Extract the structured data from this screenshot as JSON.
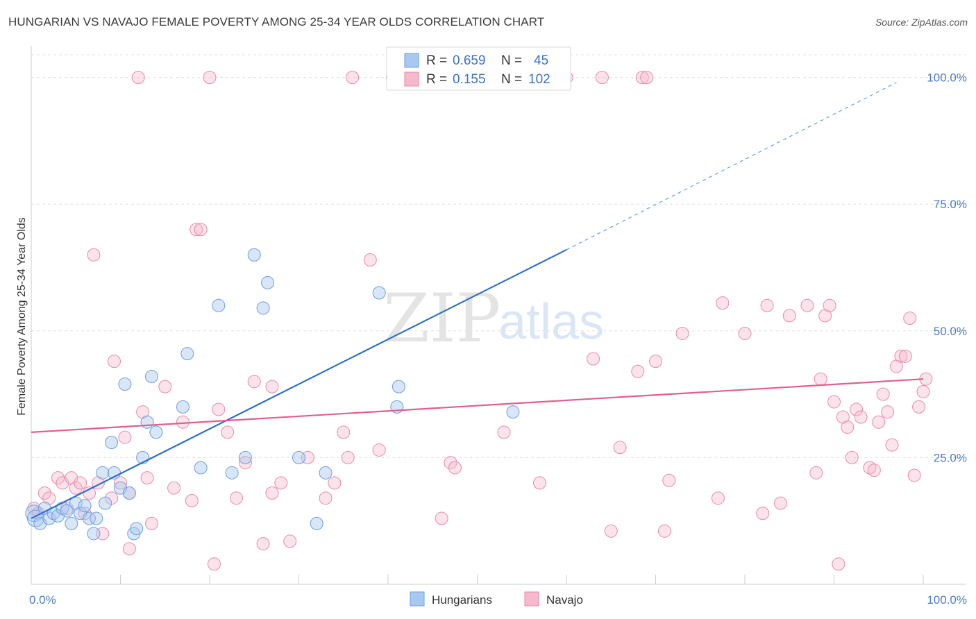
{
  "title": "HUNGARIAN VS NAVAJO FEMALE POVERTY AMONG 25-34 YEAR OLDS CORRELATION CHART",
  "source": "Source: ZipAtlas.com",
  "watermark": {
    "zip": "ZIP",
    "atlas": "atlas"
  },
  "legend": {
    "rows": [
      {
        "r_label": "R =",
        "r_value": "0.659",
        "n_label": "N =",
        "n_value": "45",
        "color": "#a8c8f0",
        "stroke": "#6a9fe0"
      },
      {
        "r_label": "R =",
        "r_value": "0.155",
        "n_label": "N =",
        "n_value": "102",
        "color": "#f5b8cc",
        "stroke": "#e88aa8"
      }
    ]
  },
  "bottom_legend": [
    {
      "label": "Hungarians",
      "color": "#a8c8f0",
      "stroke": "#6a9fe0"
    },
    {
      "label": "Navajo",
      "color": "#f5b8cc",
      "stroke": "#e88aa8"
    }
  ],
  "colors": {
    "blue_line": "#2e6fcf",
    "pink_line": "#e0608c",
    "grid": "#e0e0e0",
    "axis": "#cccccc"
  },
  "chart_data": {
    "type": "scatter",
    "xlabel": "",
    "ylabel": "Female Poverty Among 25-34 Year Olds",
    "xlim": [
      0,
      100
    ],
    "ylim": [
      0,
      102
    ],
    "x_tick_labels": [
      "0.0%",
      "100.0%"
    ],
    "y_tick_labels": [
      "25.0%",
      "50.0%",
      "75.0%",
      "100.0%"
    ],
    "y_ticks": [
      25,
      50,
      75,
      100
    ],
    "grid": true,
    "series": [
      {
        "name": "Hungarians",
        "trend": {
          "x0": 0,
          "y0": 13,
          "x1": 60,
          "y1": 66,
          "dash_to_x": 97,
          "dash_to_y": 99
        },
        "points": [
          [
            0.3,
            14
          ],
          [
            0.5,
            13
          ],
          [
            1,
            12
          ],
          [
            1.5,
            15
          ],
          [
            2,
            13
          ],
          [
            2.5,
            14
          ],
          [
            3,
            13.5
          ],
          [
            3.5,
            15
          ],
          [
            4,
            14.5
          ],
          [
            4.5,
            12
          ],
          [
            5,
            16
          ],
          [
            5.5,
            14
          ],
          [
            6,
            15.5
          ],
          [
            6.5,
            13
          ],
          [
            7,
            10
          ],
          [
            7.3,
            13
          ],
          [
            8,
            22
          ],
          [
            8.3,
            16
          ],
          [
            9,
            28
          ],
          [
            9.3,
            22
          ],
          [
            10,
            19
          ],
          [
            10.5,
            39.5
          ],
          [
            11,
            18
          ],
          [
            11.5,
            10
          ],
          [
            11.8,
            11
          ],
          [
            12.5,
            25
          ],
          [
            13,
            32
          ],
          [
            13.5,
            41
          ],
          [
            14,
            30
          ],
          [
            17,
            35
          ],
          [
            17.5,
            45.5
          ],
          [
            19,
            23
          ],
          [
            21,
            55
          ],
          [
            22.5,
            22
          ],
          [
            24,
            25
          ],
          [
            25,
            65
          ],
          [
            26,
            54.5
          ],
          [
            26.5,
            59.5
          ],
          [
            30,
            25
          ],
          [
            33,
            22
          ],
          [
            32,
            12
          ],
          [
            39,
            57.5
          ],
          [
            41,
            35
          ],
          [
            41.2,
            39
          ],
          [
            54,
            34
          ]
        ]
      },
      {
        "name": "Navajo",
        "trend": {
          "x0": 0,
          "y0": 30,
          "x1": 100,
          "y1": 40.5
        },
        "points": [
          [
            0.3,
            15
          ],
          [
            0.8,
            14
          ],
          [
            1.5,
            18
          ],
          [
            2,
            17
          ],
          [
            3,
            21
          ],
          [
            3.5,
            20
          ],
          [
            4,
            15
          ],
          [
            4.5,
            21
          ],
          [
            5,
            19
          ],
          [
            5.5,
            20
          ],
          [
            6,
            14
          ],
          [
            6.5,
            18
          ],
          [
            7,
            65
          ],
          [
            7.5,
            20
          ],
          [
            8,
            10
          ],
          [
            9,
            17
          ],
          [
            9.3,
            44
          ],
          [
            10,
            20
          ],
          [
            10.5,
            29
          ],
          [
            11,
            18
          ],
          [
            11,
            7
          ],
          [
            12,
            100
          ],
          [
            12.5,
            34
          ],
          [
            13,
            21
          ],
          [
            13.5,
            12
          ],
          [
            15,
            39
          ],
          [
            16,
            19
          ],
          [
            17,
            32
          ],
          [
            18,
            16.5
          ],
          [
            18.5,
            70
          ],
          [
            19,
            70
          ],
          [
            20,
            100
          ],
          [
            20.5,
            4
          ],
          [
            21,
            34.5
          ],
          [
            22,
            30
          ],
          [
            23,
            17
          ],
          [
            24,
            24
          ],
          [
            25,
            40
          ],
          [
            26,
            8
          ],
          [
            27,
            39
          ],
          [
            27,
            18
          ],
          [
            28,
            20
          ],
          [
            29,
            8.5
          ],
          [
            31,
            25
          ],
          [
            33,
            17
          ],
          [
            34,
            20
          ],
          [
            35,
            30
          ],
          [
            35.5,
            25
          ],
          [
            36,
            100
          ],
          [
            38,
            64
          ],
          [
            39,
            26.5
          ],
          [
            40.5,
            100
          ],
          [
            46,
            13
          ],
          [
            47,
            24
          ],
          [
            47.5,
            23
          ],
          [
            53,
            30
          ],
          [
            57,
            20
          ],
          [
            63,
            44.5
          ],
          [
            64,
            100
          ],
          [
            65,
            10.5
          ],
          [
            66,
            27
          ],
          [
            68,
            42
          ],
          [
            68.5,
            100
          ],
          [
            70,
            44
          ],
          [
            71,
            10.5
          ],
          [
            71.5,
            20.5
          ],
          [
            73,
            49.5
          ],
          [
            77,
            17
          ],
          [
            77.5,
            55.5
          ],
          [
            80,
            49.5
          ],
          [
            82,
            14
          ],
          [
            82.5,
            55
          ],
          [
            84,
            16
          ],
          [
            85,
            53
          ],
          [
            87,
            55
          ],
          [
            88,
            22
          ],
          [
            88.5,
            40.5
          ],
          [
            89,
            53
          ],
          [
            89.5,
            55
          ],
          [
            90,
            36
          ],
          [
            90.5,
            4
          ],
          [
            91,
            33
          ],
          [
            91.5,
            31
          ],
          [
            92,
            25
          ],
          [
            92.5,
            34.5
          ],
          [
            93,
            33
          ],
          [
            94,
            23
          ],
          [
            94.5,
            22.5
          ],
          [
            95,
            32
          ],
          [
            95.5,
            37.5
          ],
          [
            96,
            34
          ],
          [
            96.5,
            27.5
          ],
          [
            97,
            43
          ],
          [
            97.5,
            45
          ],
          [
            98,
            45
          ],
          [
            98.5,
            52.5
          ],
          [
            99,
            21.5
          ],
          [
            99.5,
            35
          ],
          [
            100,
            38
          ],
          [
            100.3,
            40.5
          ],
          [
            60,
            100
          ],
          [
            69,
            100
          ]
        ]
      }
    ]
  }
}
